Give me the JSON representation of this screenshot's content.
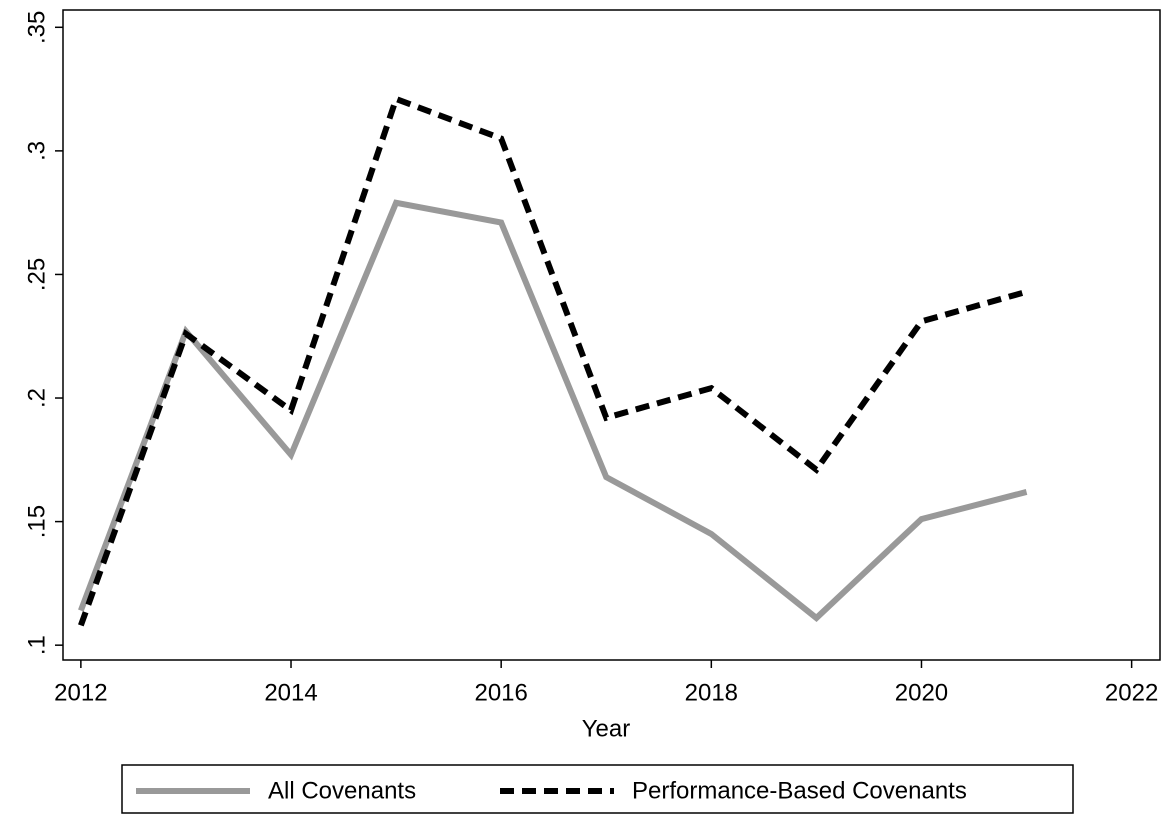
{
  "chart_data": {
    "type": "line",
    "x": [
      2012,
      2013,
      2014,
      2015,
      2016,
      2017,
      2018,
      2019,
      2020,
      2021
    ],
    "series": [
      {
        "name": "All Covenants",
        "color": "#999999",
        "style": "solid",
        "values": [
          0.114,
          0.227,
          0.177,
          0.279,
          0.271,
          0.168,
          0.145,
          0.111,
          0.151,
          0.162
        ]
      },
      {
        "name": "Performance-Based Covenants",
        "color": "#000000",
        "style": "dashed",
        "values": [
          0.108,
          0.226,
          0.195,
          0.321,
          0.305,
          0.192,
          0.204,
          0.171,
          0.231,
          0.243
        ]
      }
    ],
    "xlabel": "Year",
    "xlim": [
      2011.83,
      2022.27
    ],
    "xticks": [
      2012,
      2014,
      2016,
      2018,
      2020,
      2022
    ],
    "ylim": [
      0.094,
      0.357
    ],
    "yticks": [
      {
        "value": 0.1,
        "label": ".1"
      },
      {
        "value": 0.15,
        "label": ".15"
      },
      {
        "value": 0.2,
        "label": ".2"
      },
      {
        "value": 0.25,
        "label": ".25"
      },
      {
        "value": 0.3,
        "label": ".3"
      },
      {
        "value": 0.35,
        "label": ".35"
      }
    ],
    "grid": false,
    "legend": "bottom"
  }
}
